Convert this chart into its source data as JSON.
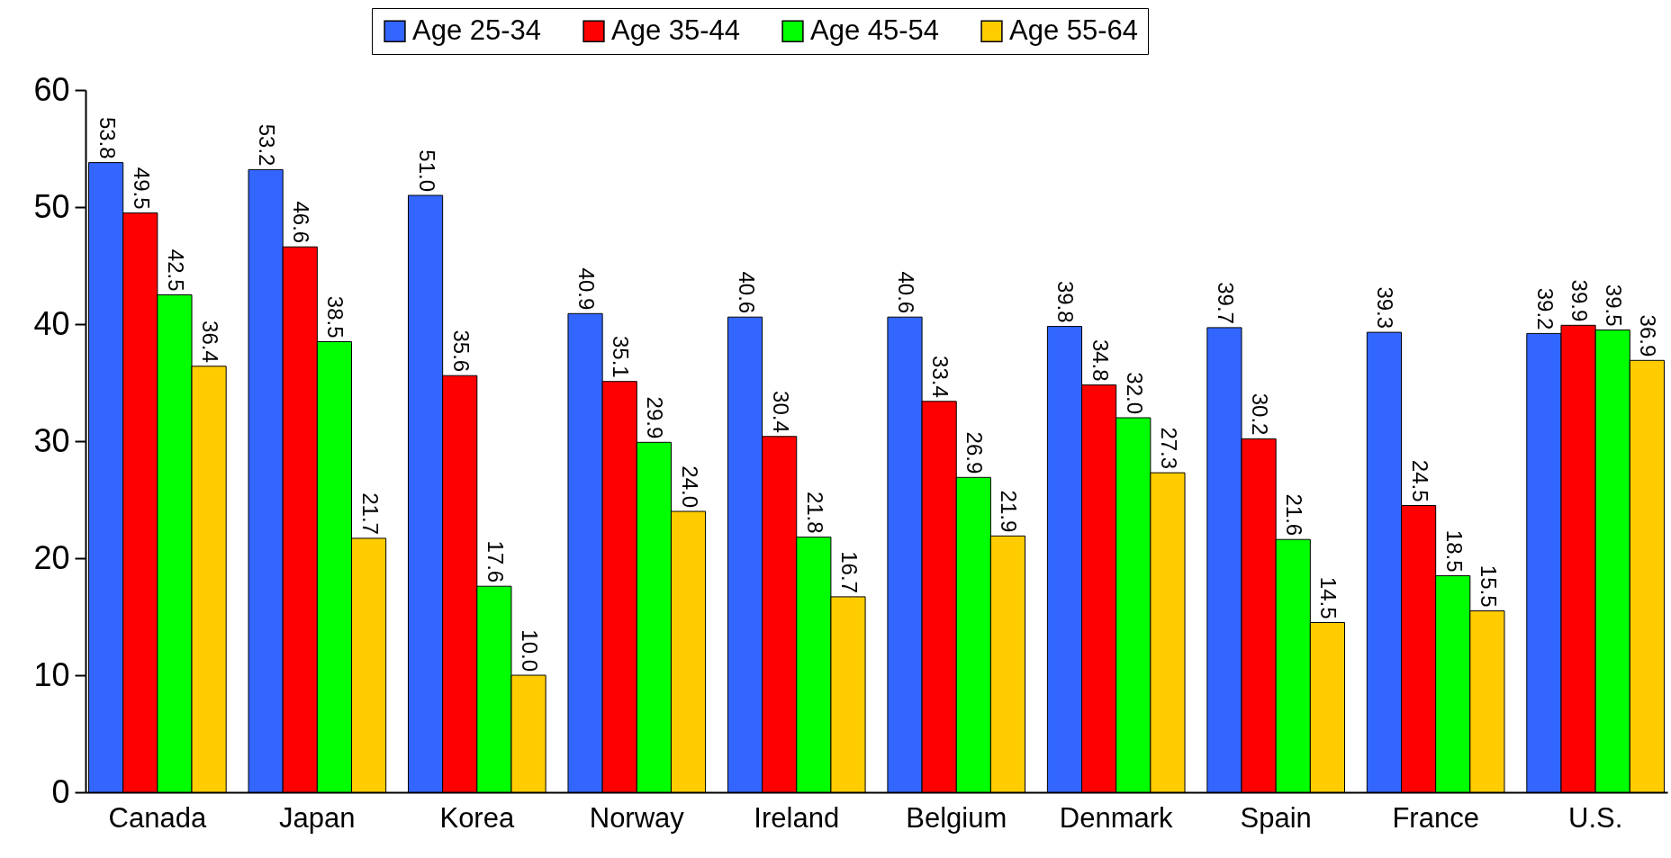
{
  "chart_data": {
    "type": "bar",
    "categories": [
      "Canada",
      "Japan",
      "Korea",
      "Norway",
      "Ireland",
      "Belgium",
      "Denmark",
      "Spain",
      "France",
      "U.S."
    ],
    "series": [
      {
        "name": "Age 25-34",
        "color": "#3366ff",
        "values": [
          53.8,
          53.2,
          51.0,
          40.9,
          40.6,
          40.6,
          39.8,
          39.7,
          39.3,
          39.2
        ],
        "value_labels": [
          "53.8",
          "53.2",
          "51.0",
          "40.9",
          "40.6",
          "40.6",
          "39.8",
          "39.7",
          "39.3",
          "39.2"
        ]
      },
      {
        "name": "Age 35-44",
        "color": "#ff0000",
        "values": [
          49.5,
          46.6,
          35.6,
          35.1,
          30.4,
          33.4,
          34.8,
          30.2,
          24.5,
          39.9
        ],
        "value_labels": [
          "49.5",
          "46.6",
          "35.6",
          "35.1",
          "30.4",
          "33.4",
          "34.8",
          "30.2",
          "24.5",
          "39.9"
        ]
      },
      {
        "name": "Age 45-54",
        "color": "#00ff00",
        "values": [
          42.5,
          38.5,
          17.6,
          29.9,
          21.8,
          26.9,
          32.0,
          21.6,
          18.5,
          39.5
        ],
        "value_labels": [
          "42.5",
          "38.5",
          "17.6",
          "29.9",
          "21.8",
          "26.9",
          "32.0",
          "21.6",
          "18.5",
          "39.5"
        ]
      },
      {
        "name": "Age 55-64",
        "color": "#ffcc00",
        "values": [
          36.4,
          21.7,
          10.0,
          24.0,
          16.7,
          21.9,
          27.3,
          14.5,
          15.5,
          36.9
        ],
        "value_labels": [
          "36.4",
          "21.7",
          "10.0",
          "24.0",
          "16.7",
          "21.9",
          "27.3",
          "14.5",
          "15.5",
          "36.9"
        ]
      }
    ],
    "ylim": [
      0,
      60
    ],
    "yticks": [
      0,
      10,
      20,
      30,
      40,
      50,
      60
    ],
    "grid": false,
    "legend": "top"
  }
}
